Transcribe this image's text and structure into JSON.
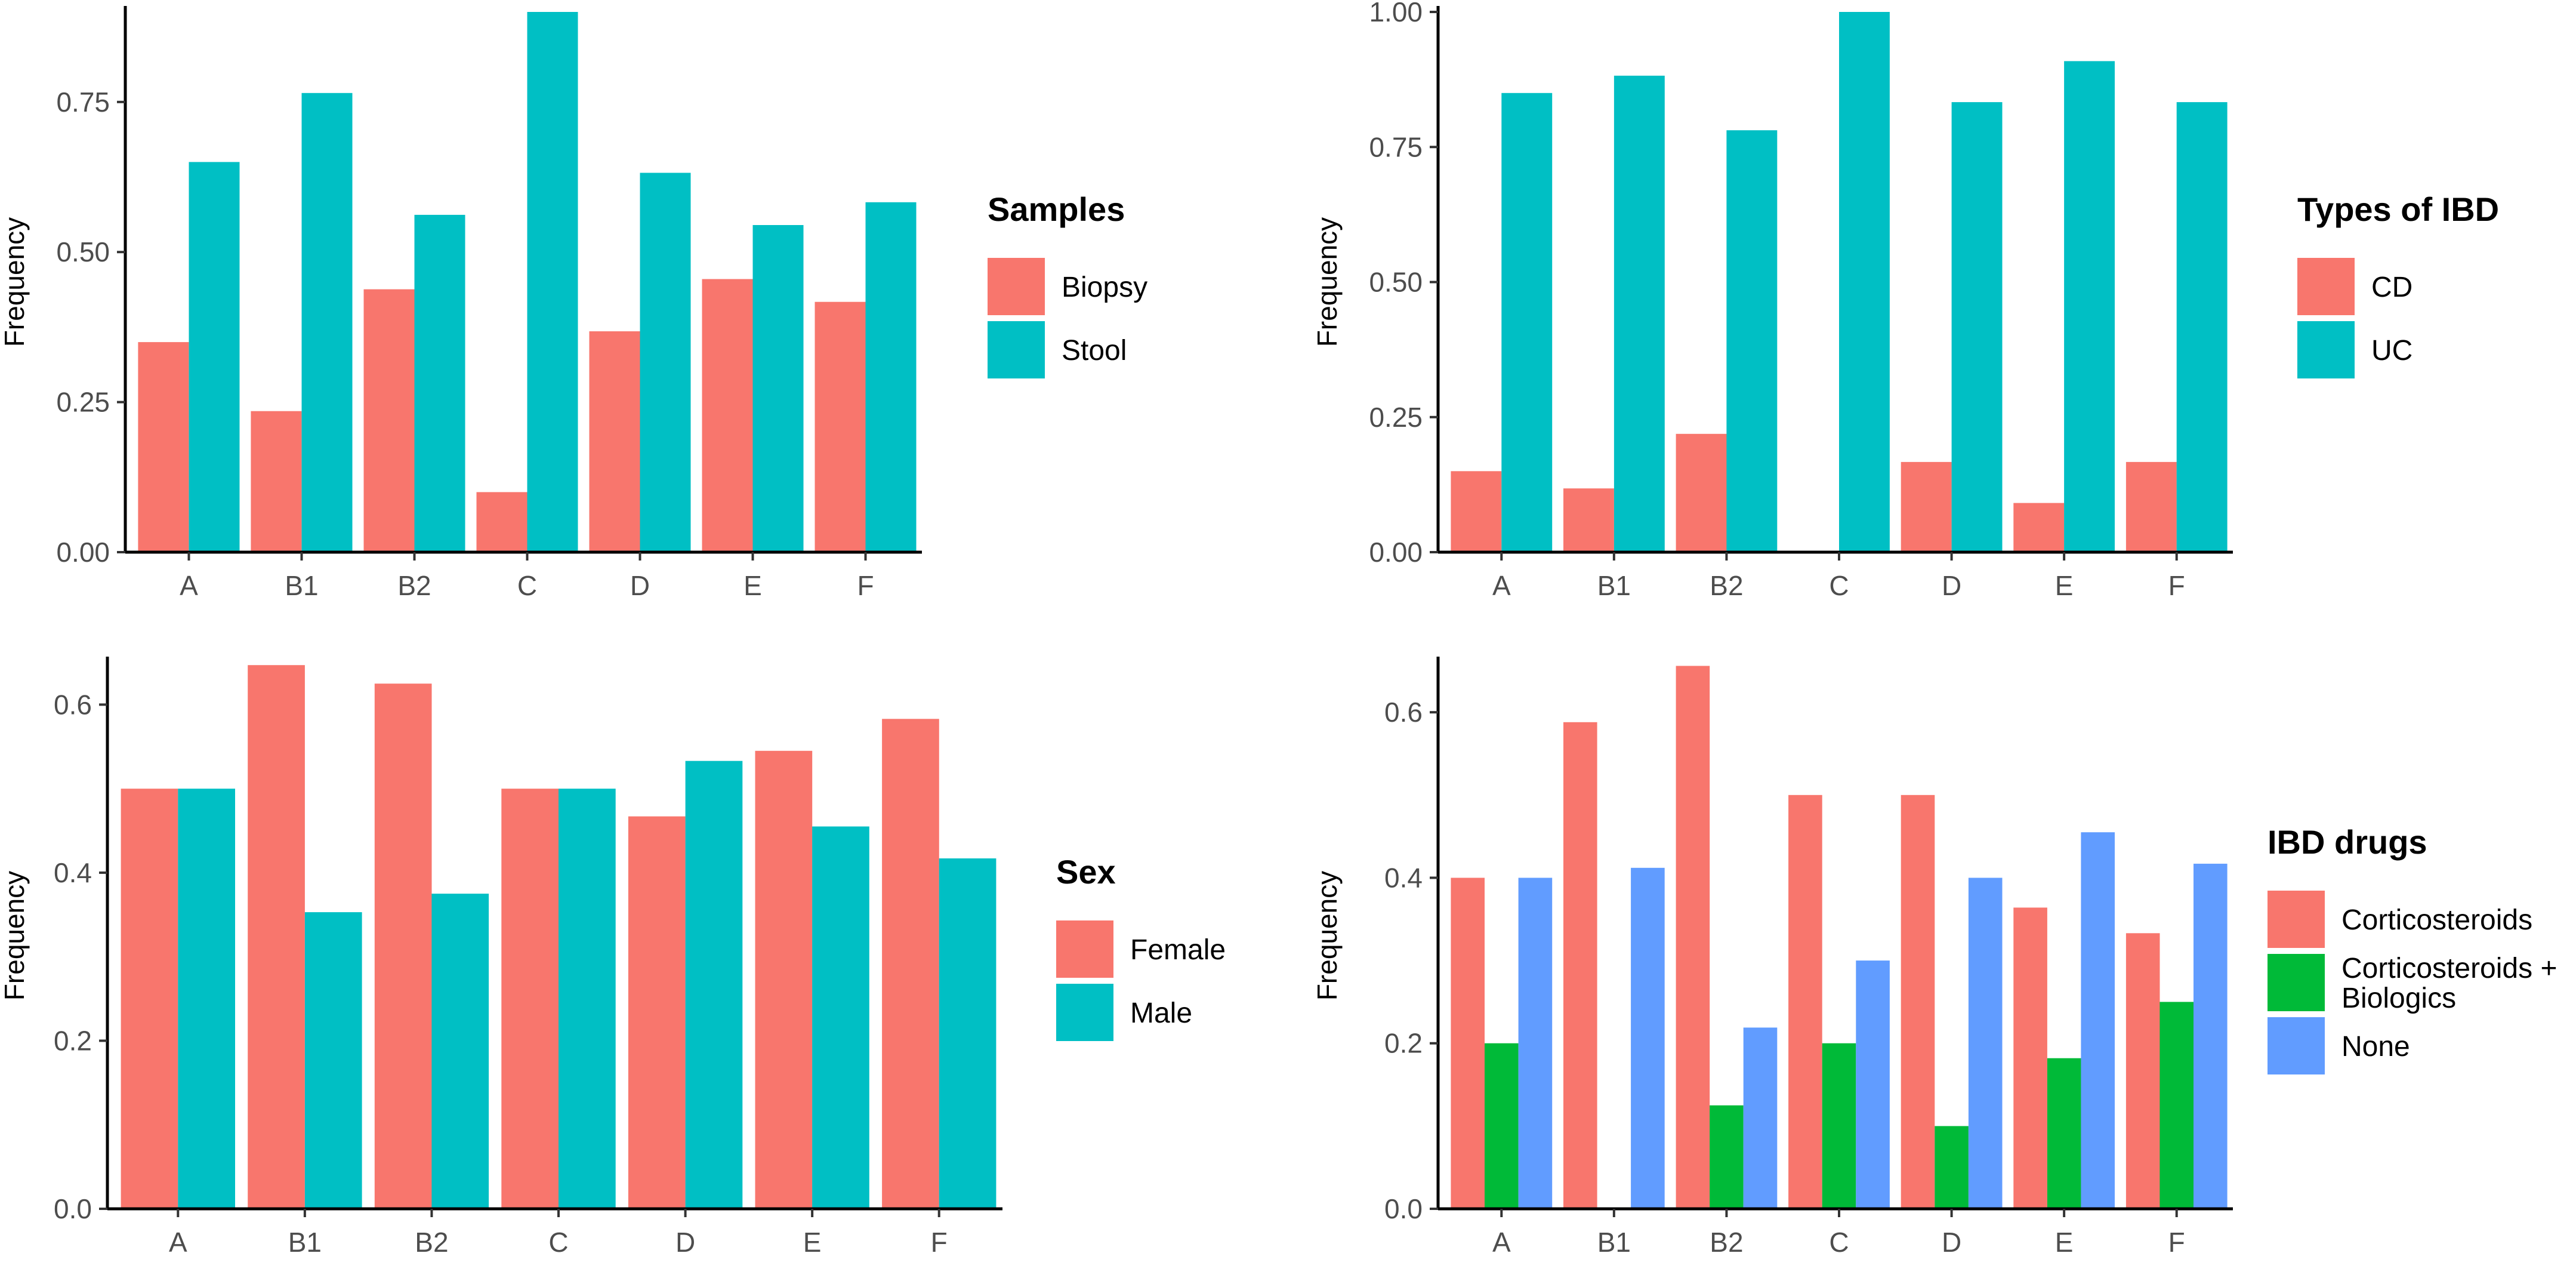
{
  "chart_data": [
    {
      "type": "bar",
      "title": "",
      "xlabel": "",
      "ylabel": "Frequency",
      "categories": [
        "A",
        "B1",
        "B2",
        "C",
        "D",
        "E",
        "F"
      ],
      "ylim": [
        0,
        0.9
      ],
      "yticks": [
        "0.00",
        "0.25",
        "0.50",
        "0.75"
      ],
      "ytick_values": [
        0,
        0.25,
        0.5,
        0.75
      ],
      "legend_title": "Samples",
      "series": [
        {
          "name": "Biopsy",
          "color": "#F8766D",
          "values": [
            0.35,
            0.235,
            0.438,
            0.1,
            0.368,
            0.455,
            0.417
          ]
        },
        {
          "name": "Stool",
          "color": "#00BFC4",
          "values": [
            0.65,
            0.765,
            0.562,
            0.9,
            0.632,
            0.545,
            0.583
          ]
        }
      ]
    },
    {
      "type": "bar",
      "title": "",
      "xlabel": "",
      "ylabel": "Frequency",
      "categories": [
        "A",
        "B1",
        "B2",
        "C",
        "D",
        "E",
        "F"
      ],
      "ylim": [
        0,
        1.0
      ],
      "yticks": [
        "0.00",
        "0.25",
        "0.50",
        "0.75",
        "1.00"
      ],
      "ytick_values": [
        0,
        0.25,
        0.5,
        0.75,
        1.0
      ],
      "legend_title": "Types of IBD",
      "series": [
        {
          "name": "CD",
          "color": "#F8766D",
          "values": [
            0.15,
            0.118,
            0.219,
            0,
            0.167,
            0.091,
            0.167
          ]
        },
        {
          "name": "UC",
          "color": "#00BFC4",
          "values": [
            0.85,
            0.882,
            0.781,
            1.0,
            0.833,
            0.909,
            0.833
          ]
        }
      ]
    },
    {
      "type": "bar",
      "title": "",
      "xlabel": "",
      "ylabel": "Frequency",
      "categories": [
        "A",
        "B1",
        "B2",
        "C",
        "D",
        "E",
        "F"
      ],
      "ylim": [
        0,
        0.65
      ],
      "yticks": [
        "0.0",
        "0.2",
        "0.4",
        "0.6"
      ],
      "ytick_values": [
        0,
        0.2,
        0.4,
        0.6
      ],
      "legend_title": "Sex",
      "series": [
        {
          "name": "Female",
          "color": "#F8766D",
          "values": [
            0.5,
            0.647,
            0.625,
            0.5,
            0.467,
            0.545,
            0.583
          ]
        },
        {
          "name": "Male",
          "color": "#00BFC4",
          "values": [
            0.5,
            0.353,
            0.375,
            0.5,
            0.533,
            0.455,
            0.417
          ]
        }
      ]
    },
    {
      "type": "bar",
      "title": "",
      "xlabel": "",
      "ylabel": "Frequency",
      "categories": [
        "A",
        "B1",
        "B2",
        "C",
        "D",
        "E",
        "F"
      ],
      "ylim": [
        0,
        0.66
      ],
      "yticks": [
        "0.0",
        "0.2",
        "0.4",
        "0.6"
      ],
      "ytick_values": [
        0,
        0.2,
        0.4,
        0.6
      ],
      "legend_title": "IBD drugs",
      "series": [
        {
          "name": "Corticosteroids",
          "color": "#F8766D",
          "values": [
            0.4,
            0.588,
            0.656,
            0.5,
            0.5,
            0.364,
            0.333
          ]
        },
        {
          "name": "Corticosteroids + Biologics",
          "label_lines": [
            "Corticosteroids +",
            "Biologics"
          ],
          "color": "#00BA38",
          "values": [
            0.2,
            0,
            0.125,
            0.2,
            0.1,
            0.182,
            0.25
          ]
        },
        {
          "name": "None",
          "color": "#619CFF",
          "values": [
            0.4,
            0.412,
            0.219,
            0.3,
            0.4,
            0.455,
            0.417
          ]
        }
      ]
    }
  ]
}
